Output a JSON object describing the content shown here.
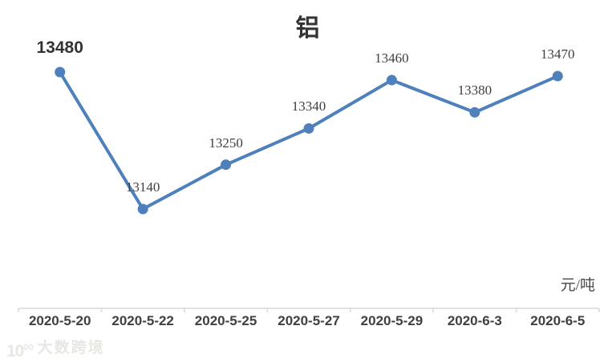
{
  "title": "铝",
  "unit_label": "元/吨",
  "watermark": {
    "logo_main": "10",
    "logo_sup": "00",
    "text": "大数跨境"
  },
  "colors": {
    "line": "#4E80BC",
    "marker": "#4E80BC",
    "axis": "#D9D9D9",
    "data_label": "#404040",
    "first_data_label": "#333333",
    "axis_label": "#404040"
  },
  "chart_data": {
    "type": "line",
    "title": "铝",
    "ylabel": "元/吨",
    "categories": [
      "2020-5-20",
      "2020-5-22",
      "2020-5-25",
      "2020-5-27",
      "2020-5-29",
      "2020-6-3",
      "2020-6-5"
    ],
    "values": [
      13480,
      13140,
      13250,
      13340,
      13460,
      13380,
      13470
    ],
    "data_labels": [
      "13480",
      "13140",
      "13250",
      "13340",
      "13460",
      "13380",
      "13470"
    ],
    "first_label_emphasized": true,
    "grid": "off",
    "legend": "none",
    "marker": "circle",
    "ylim": [
      12890,
      13660
    ]
  }
}
